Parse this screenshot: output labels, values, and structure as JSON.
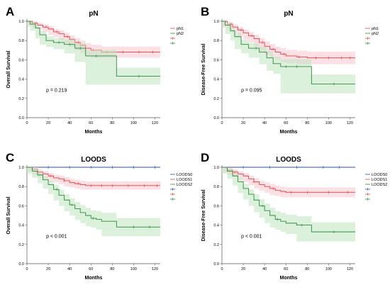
{
  "colors": {
    "series0": "#2b4fa8",
    "series1": "#e8413e",
    "series2": "#2e8b3b",
    "ci1": "#f7c8d2",
    "ci2": "#bfe6c0",
    "axis": "#555555"
  },
  "chart_data": [
    {
      "type": "line",
      "panel_letter": "A",
      "title": "pN",
      "xlabel": "Months",
      "ylabel": "Overall Survival",
      "xlim": [
        0,
        125
      ],
      "ylim": [
        0,
        1.0
      ],
      "x_ticks": [
        0,
        20,
        40,
        60,
        80,
        100,
        120
      ],
      "y_ticks": [
        "0.0",
        "0.2",
        "0.4",
        "0.6",
        "0.8",
        "1.0"
      ],
      "legend_position": "top-right",
      "legend": [
        "pN1",
        "pN2",
        "",
        ""
      ],
      "pvalue": "p = 0.219",
      "series": [
        {
          "name": "pN1",
          "color": "series1",
          "x": [
            0,
            5,
            10,
            15,
            20,
            25,
            30,
            35,
            40,
            45,
            50,
            55,
            60,
            70,
            80,
            100,
            125
          ],
          "y": [
            1.0,
            0.98,
            0.96,
            0.94,
            0.92,
            0.89,
            0.87,
            0.84,
            0.81,
            0.78,
            0.75,
            0.72,
            0.7,
            0.68,
            0.68,
            0.68,
            0.68
          ],
          "censor_x": [
            8,
            18,
            28,
            38,
            48,
            62,
            75,
            90,
            105,
            118
          ]
        },
        {
          "name": "pN2",
          "color": "series2",
          "x": [
            0,
            3,
            8,
            12,
            18,
            25,
            35,
            45,
            55,
            84,
            125
          ],
          "y": [
            1.0,
            0.97,
            0.93,
            0.86,
            0.8,
            0.78,
            0.76,
            0.72,
            0.64,
            0.43,
            0.43
          ],
          "censor_x": [
            30,
            40,
            50,
            65,
            105
          ]
        }
      ]
    },
    {
      "type": "line",
      "panel_letter": "B",
      "title": "pN",
      "xlabel": "Months",
      "ylabel": "Disease-Free Survival",
      "xlim": [
        0,
        125
      ],
      "ylim": [
        0,
        1.0
      ],
      "x_ticks": [
        0,
        20,
        40,
        60,
        80,
        100,
        120
      ],
      "y_ticks": [
        "0.0",
        "0.2",
        "0.4",
        "0.6",
        "0.8",
        "1.0"
      ],
      "legend_position": "top-right",
      "legend": [
        "pN1",
        "pN2",
        "",
        ""
      ],
      "pvalue": "p = 0.095",
      "series": [
        {
          "name": "pN1",
          "color": "series1",
          "x": [
            0,
            5,
            10,
            15,
            20,
            25,
            30,
            35,
            40,
            45,
            50,
            55,
            60,
            70,
            80,
            125
          ],
          "y": [
            1.0,
            0.97,
            0.94,
            0.91,
            0.88,
            0.85,
            0.82,
            0.78,
            0.74,
            0.71,
            0.68,
            0.66,
            0.64,
            0.63,
            0.62,
            0.62
          ],
          "censor_x": [
            8,
            18,
            28,
            38,
            48,
            58,
            72,
            88,
            100,
            112,
            120
          ]
        },
        {
          "name": "pN2",
          "color": "series2",
          "x": [
            0,
            3,
            8,
            12,
            18,
            25,
            35,
            42,
            48,
            55,
            84,
            125
          ],
          "y": [
            1.0,
            0.96,
            0.9,
            0.84,
            0.76,
            0.72,
            0.68,
            0.62,
            0.56,
            0.53,
            0.35,
            0.35
          ],
          "censor_x": [
            32,
            60,
            70,
            105
          ]
        }
      ]
    },
    {
      "type": "line",
      "panel_letter": "C",
      "title": "LOODS",
      "xlabel": "Months",
      "ylabel": "Overall Survival",
      "xlim": [
        0,
        125
      ],
      "ylim": [
        0,
        1.0
      ],
      "x_ticks": [
        0,
        20,
        40,
        60,
        80,
        100,
        120
      ],
      "y_ticks": [
        "0.0",
        "0.2",
        "0.4",
        "0.6",
        "0.8",
        "1.0"
      ],
      "legend_position": "top-right",
      "legend": [
        "LOODS0",
        "LOODS1",
        "LOODS2",
        "",
        "",
        ""
      ],
      "pvalue": "p < 0.001",
      "series": [
        {
          "name": "LOODS0",
          "color": "series0",
          "x": [
            0,
            125
          ],
          "y": [
            1.0,
            1.0
          ],
          "censor_x": [
            20,
            40,
            60,
            80,
            100,
            120
          ]
        },
        {
          "name": "LOODS1",
          "color": "series1",
          "x": [
            0,
            5,
            10,
            15,
            20,
            25,
            30,
            35,
            40,
            45,
            50,
            55,
            60,
            125
          ],
          "y": [
            1.0,
            0.98,
            0.95,
            0.93,
            0.91,
            0.89,
            0.88,
            0.86,
            0.84,
            0.83,
            0.82,
            0.81,
            0.81,
            0.81
          ],
          "censor_x": [
            10,
            22,
            35,
            48,
            60,
            70,
            80,
            95,
            110,
            122
          ]
        },
        {
          "name": "LOODS2",
          "color": "series2",
          "x": [
            0,
            5,
            10,
            15,
            20,
            25,
            30,
            35,
            40,
            45,
            50,
            55,
            60,
            65,
            70,
            84,
            125
          ],
          "y": [
            1.0,
            0.96,
            0.92,
            0.87,
            0.82,
            0.77,
            0.71,
            0.66,
            0.61,
            0.57,
            0.53,
            0.5,
            0.47,
            0.46,
            0.44,
            0.38,
            0.38
          ],
          "censor_x": [
            28,
            42,
            62,
            100,
            115
          ]
        }
      ]
    },
    {
      "type": "line",
      "panel_letter": "D",
      "title": "LOODS",
      "xlabel": "Months",
      "ylabel": "Disease-Free Survival",
      "xlim": [
        0,
        125
      ],
      "ylim": [
        0,
        1.0
      ],
      "x_ticks": [
        0,
        20,
        40,
        60,
        80,
        100,
        120
      ],
      "y_ticks": [
        "0.0",
        "0.2",
        "0.4",
        "0.6",
        "0.8",
        "1.0"
      ],
      "legend_position": "top-right",
      "legend": [
        "LOODS0",
        "LOODS1",
        "LOODS2",
        "",
        "",
        ""
      ],
      "pvalue": "p < 0.001",
      "series": [
        {
          "name": "LOODS0",
          "color": "series0",
          "x": [
            0,
            125
          ],
          "y": [
            1.0,
            1.0
          ],
          "censor_x": [
            20,
            45,
            70,
            95,
            110
          ]
        },
        {
          "name": "LOODS1",
          "color": "series1",
          "x": [
            0,
            5,
            10,
            15,
            20,
            25,
            30,
            35,
            40,
            45,
            50,
            55,
            60,
            125
          ],
          "y": [
            1.0,
            0.97,
            0.95,
            0.93,
            0.91,
            0.88,
            0.85,
            0.82,
            0.8,
            0.78,
            0.76,
            0.75,
            0.74,
            0.74
          ],
          "censor_x": [
            12,
            30,
            48,
            65,
            80,
            100,
            118
          ]
        },
        {
          "name": "LOODS2",
          "color": "series2",
          "x": [
            0,
            5,
            10,
            15,
            20,
            25,
            30,
            35,
            40,
            45,
            50,
            55,
            60,
            70,
            84,
            125
          ],
          "y": [
            1.0,
            0.96,
            0.91,
            0.85,
            0.78,
            0.72,
            0.66,
            0.6,
            0.55,
            0.5,
            0.46,
            0.44,
            0.42,
            0.4,
            0.33,
            0.33
          ],
          "censor_x": [
            38,
            52,
            75,
            105
          ]
        }
      ]
    }
  ]
}
